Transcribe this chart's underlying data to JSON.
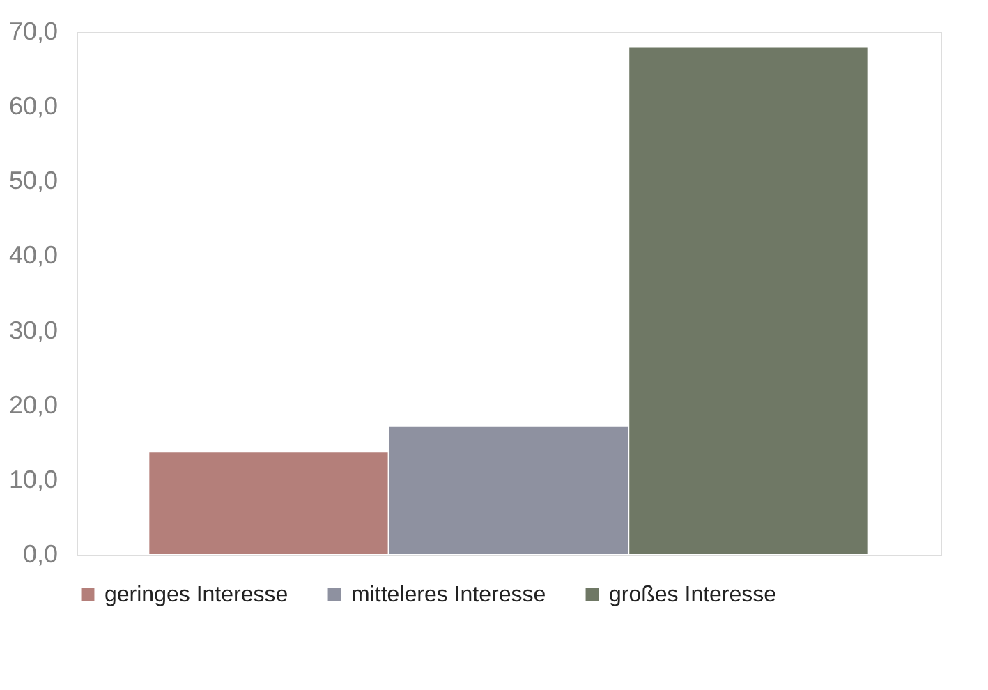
{
  "chart_data": {
    "type": "bar",
    "categories": [
      null
    ],
    "series": [
      {
        "name": "geringes Interesse",
        "color": "#b47f7a",
        "values": [
          13.8
        ]
      },
      {
        "name": "mitteleres Interesse",
        "color": "#8e91a0",
        "values": [
          17.3
        ]
      },
      {
        "name": "großes Interesse",
        "color": "#6f7865",
        "values": [
          68.0
        ]
      }
    ],
    "ylim": [
      0,
      70
    ],
    "yticks": [
      {
        "value": 0,
        "label": "0,0"
      },
      {
        "value": 10,
        "label": "10,0"
      },
      {
        "value": 20,
        "label": "20,0"
      },
      {
        "value": 30,
        "label": "30,0"
      },
      {
        "value": 40,
        "label": "40,0"
      },
      {
        "value": 50,
        "label": "50,0"
      },
      {
        "value": 60,
        "label": "60,0"
      },
      {
        "value": 70,
        "label": "70,0"
      }
    ],
    "grid": false,
    "legend": "bottom"
  }
}
